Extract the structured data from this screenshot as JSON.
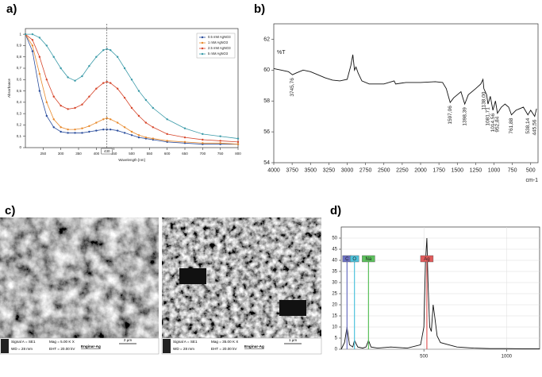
{
  "chart_data": [
    {
      "type": "line",
      "panel_label": "a)",
      "xlabel": "Wavelength [nm]",
      "ylabel": "Absorbance",
      "x": [
        200,
        220,
        240,
        260,
        280,
        300,
        320,
        340,
        360,
        380,
        400,
        420,
        430,
        440,
        460,
        480,
        500,
        520,
        540,
        560,
        600,
        650,
        700,
        750,
        800
      ],
      "series": [
        {
          "name": "0.5 mM AgNO3",
          "color": "#2a4d9c",
          "values": [
            1.0,
            0.85,
            0.5,
            0.28,
            0.18,
            0.14,
            0.13,
            0.13,
            0.13,
            0.14,
            0.15,
            0.16,
            0.16,
            0.16,
            0.15,
            0.13,
            0.11,
            0.09,
            0.08,
            0.07,
            0.05,
            0.04,
            0.03,
            0.03,
            0.03
          ]
        },
        {
          "name": "1 mM AgNO3",
          "color": "#e8892b",
          "values": [
            1.0,
            0.9,
            0.65,
            0.4,
            0.25,
            0.18,
            0.16,
            0.16,
            0.17,
            0.19,
            0.22,
            0.25,
            0.26,
            0.25,
            0.22,
            0.18,
            0.14,
            0.11,
            0.09,
            0.08,
            0.06,
            0.05,
            0.04,
            0.04,
            0.03
          ]
        },
        {
          "name": "2.5 mM AgNO3",
          "color": "#d6452a",
          "values": [
            1.0,
            0.95,
            0.8,
            0.6,
            0.45,
            0.37,
            0.34,
            0.35,
            0.38,
            0.45,
            0.52,
            0.57,
            0.58,
            0.57,
            0.52,
            0.44,
            0.35,
            0.28,
            0.22,
            0.18,
            0.12,
            0.09,
            0.07,
            0.06,
            0.05
          ]
        },
        {
          "name": "5 mM AgNO3",
          "color": "#3a9aa8",
          "values": [
            1.0,
            1.0,
            0.97,
            0.9,
            0.8,
            0.7,
            0.62,
            0.59,
            0.63,
            0.72,
            0.8,
            0.86,
            0.87,
            0.86,
            0.8,
            0.7,
            0.6,
            0.5,
            0.42,
            0.35,
            0.25,
            0.17,
            0.12,
            0.1,
            0.08
          ]
        }
      ],
      "markers": true,
      "legend": "upper right",
      "vline": 430,
      "xlim": [
        200,
        800
      ],
      "xticks": [
        250,
        300,
        350,
        400,
        450,
        500,
        550,
        600,
        650,
        700,
        750,
        800
      ],
      "ylim": [
        0,
        1.05
      ],
      "yticks": [
        0,
        {
          "value": 0.1,
          "label": "0,1"
        },
        {
          "value": 0.2,
          "label": "0,2"
        },
        {
          "value": 0.3,
          "label": "0,3"
        },
        {
          "value": 0.4,
          "label": "0,4"
        },
        {
          "value": 0.5,
          "label": "0,5"
        },
        {
          "value": 0.6,
          "label": "0,6"
        },
        {
          "value": 0.7,
          "label": "0,7"
        },
        {
          "value": 0.8,
          "label": "0,8"
        },
        {
          "value": 0.9,
          "label": "0,9"
        },
        1
      ],
      "grid": false
    },
    {
      "type": "line",
      "panel_label": "b)",
      "xlabel": "cm-1",
      "ylabel": "%T",
      "color": "#111111",
      "x": [
        4000,
        3900,
        3800,
        3745.76,
        3700,
        3600,
        3500,
        3400,
        3300,
        3200,
        3100,
        3000,
        2950,
        2923,
        2900,
        2880,
        2850,
        2800,
        2700,
        2500,
        2360,
        2340,
        2200,
        2000,
        1800,
        1700,
        1650,
        1597.06,
        1550,
        1500,
        1450,
        1398.39,
        1350,
        1250,
        1180,
        1150,
        1138,
        1100,
        1081.71,
        1050,
        1014.56,
        980,
        952.84,
        900,
        850,
        800,
        761.88,
        700,
        650,
        600,
        538.14,
        500,
        445.56,
        420
      ],
      "values": [
        60.1,
        60.0,
        59.9,
        59.7,
        59.8,
        60.0,
        59.9,
        59.7,
        59.5,
        59.35,
        59.3,
        59.4,
        60.3,
        61.0,
        60.0,
        60.2,
        59.8,
        59.3,
        59.1,
        59.1,
        59.3,
        59.1,
        59.2,
        59.2,
        59.25,
        59.2,
        58.8,
        57.9,
        58.2,
        58.4,
        58.6,
        57.8,
        58.4,
        58.8,
        59.1,
        59.4,
        58.8,
        58.4,
        57.8,
        58.3,
        57.4,
        58.0,
        57.2,
        57.6,
        57.8,
        57.6,
        57.1,
        57.4,
        57.5,
        57.6,
        57.1,
        57.4,
        57.0,
        57.5
      ],
      "annotations": [
        {
          "x": 3745.76,
          "label": "3745,76"
        },
        {
          "x": 1597.06,
          "label": "1597,06"
        },
        {
          "x": 1398.39,
          "label": "1398,39"
        },
        {
          "x": 1138,
          "label": "1138,00"
        },
        {
          "x": 1081.71,
          "label": "1081,71"
        },
        {
          "x": 1014.56,
          "label": "1014,56"
        },
        {
          "x": 952.84,
          "label": "952,84"
        },
        {
          "x": 761.88,
          "label": "761,88"
        },
        {
          "x": 538.14,
          "label": "538,14"
        },
        {
          "x": 445.56,
          "label": "445,56"
        }
      ],
      "xlim": [
        4000,
        400
      ],
      "xticks": [
        4000,
        3750,
        3500,
        3250,
        3000,
        2750,
        2500,
        2250,
        2000,
        1750,
        1500,
        1250,
        1000,
        750,
        500
      ],
      "ylim": [
        54,
        63
      ],
      "yticks": [
        54,
        56,
        58,
        60,
        62
      ],
      "grid": false
    },
    {
      "type": "line",
      "panel_label": "d)",
      "color": "#111111",
      "x": [
        0,
        20,
        35,
        50,
        70,
        80,
        100,
        130,
        150,
        165,
        180,
        220,
        300,
        400,
        480,
        500,
        510,
        518,
        525,
        535,
        545,
        556,
        565,
        580,
        600,
        650,
        700,
        800,
        900,
        1000,
        1100,
        1200
      ],
      "values": [
        0,
        3,
        10,
        2,
        1,
        4,
        1,
        0.5,
        1,
        4,
        1,
        0.5,
        1,
        0.5,
        2,
        10,
        40,
        50,
        30,
        10,
        8,
        20,
        15,
        6,
        3,
        2,
        1,
        0.5,
        0.3,
        0.3,
        0.2,
        0.2
      ],
      "elements": [
        {
          "name": "C",
          "x": 35,
          "color": "#6a6fc0"
        },
        {
          "name": "O",
          "x": 80,
          "color": "#4fc3dc"
        },
        {
          "name": "Na",
          "x": 165,
          "color": "#5cc05c"
        },
        {
          "name": "Ag",
          "x": 518,
          "color": "#e05a5a"
        }
      ],
      "xlim": [
        0,
        1200
      ],
      "xticks": [
        500,
        1000
      ],
      "ylim": [
        0,
        55
      ],
      "yticks": [
        0,
        5,
        10,
        15,
        20,
        25,
        30,
        35,
        40,
        45,
        50
      ],
      "grid": true
    }
  ],
  "images": {
    "panel_label": "c)",
    "items": [
      {
        "signal": "Signal A = SE1",
        "mag": "Mag = 5.00 K X",
        "wd": "WD = 28 mm",
        "eht": "EHT = 20.00 kV",
        "scale": "2 µm",
        "sample": "Enginar-Ag"
      },
      {
        "signal": "Signal A = SE1",
        "mag": "Mag = 35.00 K X",
        "wd": "WD = 28 mm",
        "eht": "EHT = 20.00 kV",
        "scale": "1 µm",
        "sample": "Enginar-Ag"
      }
    ]
  }
}
